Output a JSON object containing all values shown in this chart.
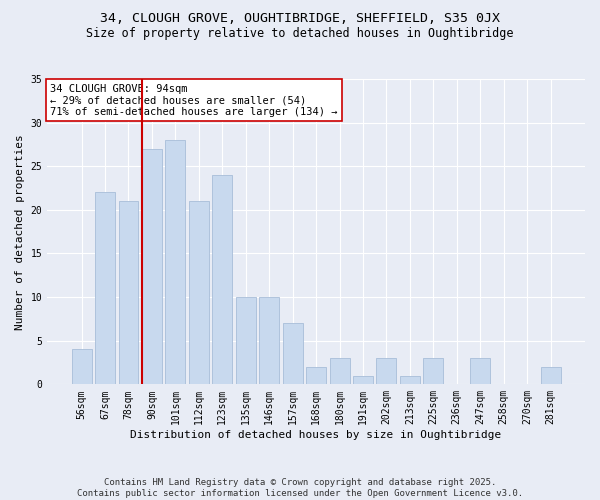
{
  "title": "34, CLOUGH GROVE, OUGHTIBRIDGE, SHEFFIELD, S35 0JX",
  "subtitle": "Size of property relative to detached houses in Oughtibridge",
  "xlabel": "Distribution of detached houses by size in Oughtibridge",
  "ylabel": "Number of detached properties",
  "categories": [
    "56sqm",
    "67sqm",
    "78sqm",
    "90sqm",
    "101sqm",
    "112sqm",
    "123sqm",
    "135sqm",
    "146sqm",
    "157sqm",
    "168sqm",
    "180sqm",
    "191sqm",
    "202sqm",
    "213sqm",
    "225sqm",
    "236sqm",
    "247sqm",
    "258sqm",
    "270sqm",
    "281sqm"
  ],
  "values": [
    4,
    22,
    21,
    27,
    28,
    21,
    24,
    10,
    10,
    7,
    2,
    3,
    1,
    3,
    1,
    3,
    0,
    3,
    0,
    0,
    2
  ],
  "bar_color": "#c8d9ee",
  "bar_edge_color": "#a8bdd8",
  "vline_x": 3,
  "vline_color": "#cc0000",
  "annotation_box_text": "34 CLOUGH GROVE: 94sqm\n← 29% of detached houses are smaller (54)\n71% of semi-detached houses are larger (134) →",
  "ylim": [
    0,
    35
  ],
  "yticks": [
    0,
    5,
    10,
    15,
    20,
    25,
    30,
    35
  ],
  "background_color": "#e8ecf5",
  "plot_bg_color": "#e8ecf5",
  "footer_text": "Contains HM Land Registry data © Crown copyright and database right 2025.\nContains public sector information licensed under the Open Government Licence v3.0.",
  "title_fontsize": 9.5,
  "subtitle_fontsize": 8.5,
  "xlabel_fontsize": 8,
  "ylabel_fontsize": 8,
  "tick_fontsize": 7,
  "annotation_fontsize": 7.5,
  "footer_fontsize": 6.5
}
